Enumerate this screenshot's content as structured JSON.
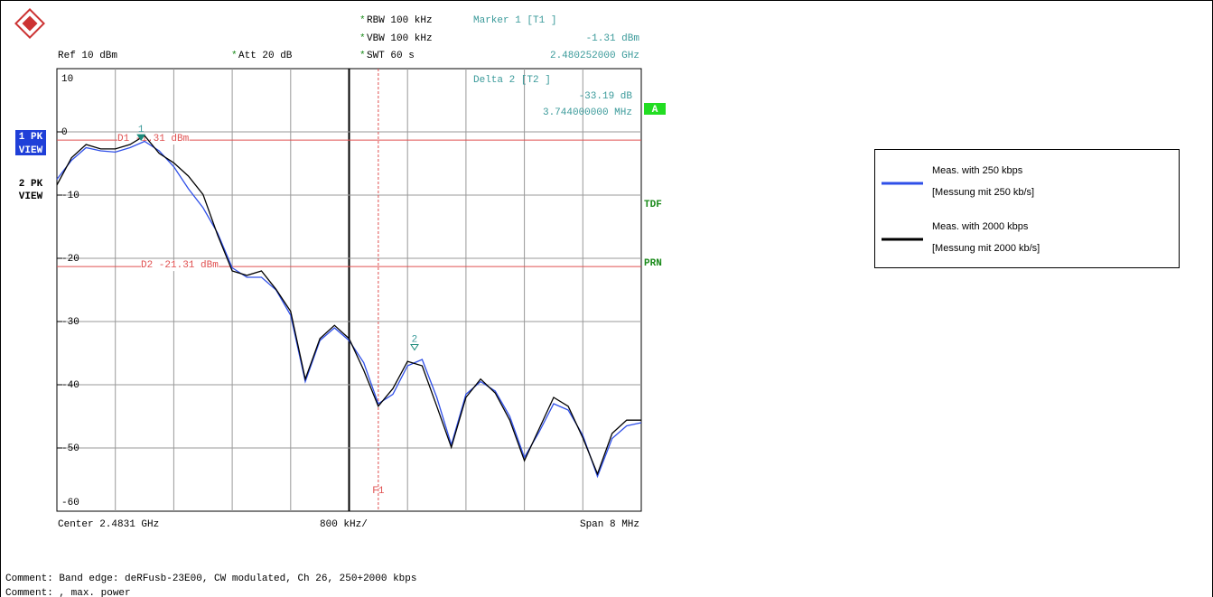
{
  "chart_data": {
    "type": "line",
    "star": "*",
    "rbw": "RBW 100 kHz",
    "vbw": "VBW 100 kHz",
    "swt": "SWT 60 s",
    "ref": "Ref  10 dBm",
    "att": "Att  20 dB",
    "marker1_title": "Marker 1 [T1 ]",
    "marker1_level": "-1.31 dBm",
    "marker1_freq": "2.480252000 GHz",
    "delta2_title": "Delta 2 [T2 ]",
    "delta2_level": "-33.19 dB",
    "delta2_freq": "3.744000000 MHz",
    "trace1_label": [
      "1 PK",
      "VIEW"
    ],
    "trace2_label": [
      "2 PK",
      "VIEW"
    ],
    "side_labels": {
      "a": "A",
      "tdf": "TDF",
      "prn": "PRN"
    },
    "center": "Center 2.4831 GHz",
    "division": "800 kHz/",
    "span": "Span 8 MHz",
    "comments": [
      "Comment: Band edge: deRFusb-23E00, CW modulated, Ch 26, 250+2000 kbps",
      "Comment: , max. power"
    ],
    "xlim": [
      2.4791,
      2.4871
    ],
    "ylim": [
      -60,
      10
    ],
    "yticks": [
      10,
      0,
      -10,
      -20,
      -30,
      -40,
      -50,
      -60
    ],
    "x": [
      2.4791,
      2.4793,
      2.4795,
      2.4797,
      2.4799,
      2.4801,
      2.4803,
      2.4805,
      2.4807,
      2.4809,
      2.4811,
      2.4813,
      2.4815,
      2.4817,
      2.4819,
      2.4821,
      2.4823,
      2.4825,
      2.4827,
      2.4829,
      2.4831,
      2.4833,
      2.4835,
      2.4837,
      2.4839,
      2.4841,
      2.4843,
      2.4845,
      2.4847,
      2.4849,
      2.4851,
      2.4853,
      2.4855,
      2.4857,
      2.4859,
      2.4861,
      2.4863,
      2.4865,
      2.4867,
      2.4869,
      2.4871
    ],
    "series": [
      {
        "name": "Meas. with 250 kbps",
        "note": "[Messung mit 250 kb/s]",
        "color": "#2f4fe8",
        "values": [
          -7.5,
          -4.5,
          -2.5,
          -3,
          -3.2,
          -2.5,
          -1.5,
          -3,
          -5.5,
          -9,
          -12,
          -16,
          -21.5,
          -23,
          -23,
          -25,
          -29,
          -39.5,
          -33,
          -31,
          -33,
          -36.5,
          -43,
          -41.5,
          -37,
          -36,
          -42,
          -49.5,
          -41.5,
          -39.5,
          -41,
          -45,
          -51.5,
          -47.5,
          -43,
          -44,
          -48,
          -54.5,
          -48.5,
          -46.5,
          -46
        ]
      },
      {
        "name": "Meas. with 2000 kbps",
        "note": "[Messung mit 2000 kb/s]",
        "color": "#000000",
        "values": [
          -8.4,
          -4.1,
          -2,
          -2.7,
          -2.7,
          -2,
          -0.6,
          -3.4,
          -4.9,
          -7,
          -9.9,
          -16.3,
          -22,
          -22.7,
          -22,
          -24.9,
          -28.4,
          -39.1,
          -32.7,
          -30.6,
          -32.7,
          -37.7,
          -43.4,
          -40.6,
          -36.3,
          -37,
          -43.4,
          -49.9,
          -42,
          -39.1,
          -41.3,
          -45.6,
          -52,
          -47,
          -42,
          -43.4,
          -48.4,
          -54.1,
          -47.7,
          -45.6,
          -45.6
        ]
      }
    ],
    "display_lines": [
      {
        "label": "D1 -1.31 dBm",
        "value": -1.31
      },
      {
        "label": "D2 -21.31 dBm",
        "value": -21.31
      }
    ],
    "freq_line": {
      "label": "F1",
      "x": 2.4835
    },
    "markers": [
      {
        "label": "1",
        "x": 2.480252,
        "y": -1.31
      },
      {
        "label": "2",
        "x": 2.483996,
        "y": -34.5
      }
    ]
  }
}
